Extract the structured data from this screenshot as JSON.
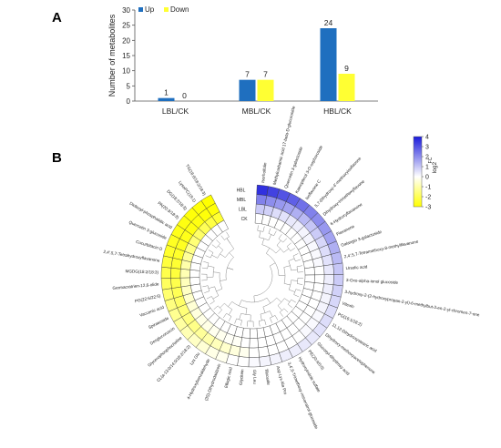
{
  "panels": {
    "a_letter": "A",
    "b_letter": "B"
  },
  "chart_data": [
    {
      "type": "bar",
      "panel": "A",
      "categories": [
        "LBL/CK",
        "MBL/CK",
        "HBL/CK"
      ],
      "series": [
        {
          "name": "Up",
          "values": [
            1,
            7,
            24
          ],
          "color": "#1f6fbf"
        },
        {
          "name": "Down",
          "values": [
            0,
            7,
            9
          ],
          "color": "#ffff33"
        }
      ],
      "ylabel": "Number of metabolites",
      "ylim": [
        0,
        30
      ],
      "yticks": [
        "0",
        "5",
        "10",
        "15",
        "20",
        "25",
        "30"
      ],
      "legend_placement": "top-left",
      "grid": false
    },
    {
      "type": "heatmap",
      "panel": "B",
      "layout": "circular",
      "rows": [
        "HBL",
        "MBL",
        "LBL",
        "CK"
      ],
      "colorbar": {
        "title": "log2",
        "subtitle": "FC",
        "min": -3,
        "max": 4,
        "ticks": [
          "4",
          "3",
          "2",
          "1",
          "0",
          "-1",
          "-2",
          "-3"
        ],
        "colors": [
          "#ffff00",
          "#ffffff",
          "#1a1adb"
        ]
      },
      "metabolites": [
        {
          "name": "Isorhoifolin",
          "v": [
            3.6,
            2.2,
            0.9,
            0
          ]
        },
        {
          "name": "Methylcarbamic acid 17-beta-D-glucuronide",
          "v": [
            3.3,
            2.0,
            0.8,
            0
          ]
        },
        {
          "name": "Quercetin 3-galactoside",
          "v": [
            3.0,
            1.8,
            0.6,
            0
          ]
        },
        {
          "name": "Kaempferol 3-O-sophoroside",
          "v": [
            2.8,
            1.6,
            0.5,
            0
          ]
        },
        {
          "name": "Isoflavone C",
          "v": [
            2.5,
            1.4,
            0.4,
            0
          ]
        },
        {
          "name": "5,7-Dihydroxy-4'-methoxyisoflavone",
          "v": [
            2.2,
            1.2,
            0.3,
            0
          ]
        },
        {
          "name": "Dihydroxy-trimethoxyflavone",
          "v": [
            2.0,
            1.0,
            0.2,
            0
          ]
        },
        {
          "name": "6-Hydroxyflavanone",
          "v": [
            1.8,
            0.9,
            0.2,
            0
          ]
        },
        {
          "name": "Flavanone",
          "v": [
            1.6,
            0.7,
            0.1,
            0
          ]
        },
        {
          "name": "Galangin 3-galactoside",
          "v": [
            1.4,
            0.6,
            0.1,
            0
          ]
        },
        {
          "name": "2,4',5,7-Tetramethoxy-8-methylflavanone",
          "v": [
            1.2,
            0.5,
            0.1,
            0
          ]
        },
        {
          "name": "Ursolic acid",
          "v": [
            1.0,
            0.4,
            0.0,
            0
          ]
        },
        {
          "name": "3-Oxo-alpha-ionol glucoside",
          "v": [
            0.9,
            0.3,
            0.0,
            0
          ]
        },
        {
          "name": "3-hydroxy-2-(2-hydroxypropan-2-yl)-6-methylbut-3-en-2-yl-chromen-7-one",
          "v": [
            0.8,
            0.3,
            0.0,
            0
          ]
        },
        {
          "name": "Vitexin",
          "v": [
            0.7,
            0.2,
            0.0,
            0
          ]
        },
        {
          "name": "PG(16:1/18:2)",
          "v": [
            0.6,
            0.2,
            0.0,
            0
          ]
        },
        {
          "name": "11,12-Dihydroxystearic acid",
          "v": [
            0.6,
            0.1,
            0.0,
            0
          ]
        },
        {
          "name": "Dihydroxy-methoxyacetophenone",
          "v": [
            0.5,
            0.1,
            0.0,
            0
          ]
        },
        {
          "name": "Glucosyl-dihydroxy acid",
          "v": [
            0.4,
            0.1,
            0.0,
            0
          ]
        },
        {
          "name": "PE(20:4/0:0)",
          "v": [
            0.4,
            0.0,
            0.0,
            0
          ]
        },
        {
          "name": "Hydroxyindole sulfate",
          "v": [
            0.3,
            0.0,
            0.0,
            0
          ]
        },
        {
          "name": "3,4',5-Trimethoxy-resveratrol glucoside",
          "v": [
            0.3,
            0.0,
            0.0,
            0
          ]
        },
        {
          "name": "Asp Lys Ala Pro",
          "v": [
            0.2,
            0.0,
            0.0,
            0
          ]
        },
        {
          "name": "Tiliroside",
          "v": [
            0.2,
            0.0,
            0.0,
            0
          ]
        },
        {
          "name": "Gly Leu",
          "v": [
            0.1,
            0.0,
            0.0,
            0
          ]
        },
        {
          "name": "Glycitein",
          "v": [
            0.0,
            -0.2,
            0.0,
            0
          ]
        },
        {
          "name": "Ellagic acid",
          "v": [
            0.0,
            -0.4,
            -0.1,
            0
          ]
        },
        {
          "name": "(3S)-Dihydrodaidzein",
          "v": [
            -0.2,
            -0.6,
            -0.1,
            0
          ]
        },
        {
          "name": "4-Hydroxybenzaldehyde",
          "v": [
            -0.3,
            -0.8,
            -0.2,
            0
          ]
        },
        {
          "name": "Lys Glu",
          "v": [
            -0.5,
            -1.0,
            -0.2,
            0
          ]
        },
        {
          "name": "CL(a-13:0/14:0/18:2/18:2)",
          "v": [
            -0.7,
            -1.2,
            -0.3,
            0
          ]
        },
        {
          "name": "Glycerophosphocholine",
          "v": [
            -0.9,
            -1.4,
            -0.3,
            0
          ]
        },
        {
          "name": "Desglucoruscin",
          "v": [
            -1.1,
            -1.5,
            -0.4,
            0
          ]
        },
        {
          "name": "Spiraeoside",
          "v": [
            -1.3,
            -1.6,
            -0.5,
            0
          ]
        },
        {
          "name": "Vaccenic acid",
          "v": [
            -1.5,
            -1.8,
            -0.6,
            0
          ]
        },
        {
          "name": "PG(22:6/22:6)",
          "v": [
            -1.7,
            -2.0,
            -0.7,
            0
          ]
        },
        {
          "name": "Germacratrien-12,6-olide",
          "v": [
            -1.9,
            -2.1,
            -0.8,
            0
          ]
        },
        {
          "name": "MGDG(18:2/18:3)",
          "v": [
            -2.1,
            -2.3,
            -0.9,
            0
          ]
        },
        {
          "name": "2,4',5,7-Tetrahydroxyflavanone",
          "v": [
            -2.3,
            -2.4,
            -1.0,
            0
          ]
        },
        {
          "name": "Cucurbitacin D",
          "v": [
            -2.5,
            -2.5,
            -1.2,
            0
          ]
        },
        {
          "name": "Quercetin 3-glucoside",
          "v": [
            -2.6,
            -2.6,
            -1.4,
            0
          ]
        },
        {
          "name": "Dioleoyl-phosphatidic acid",
          "v": [
            -2.7,
            -2.7,
            -1.6,
            0
          ]
        },
        {
          "name": "PA(20:3/18:3)",
          "v": [
            -2.8,
            -2.8,
            -1.8,
            0
          ]
        },
        {
          "name": "DG(18:2/18:3)",
          "v": [
            -2.9,
            -2.8,
            -2.0,
            0
          ]
        },
        {
          "name": "LysoPC(18:1)",
          "v": [
            -2.9,
            -2.9,
            -2.2,
            0
          ]
        },
        {
          "name": "TG(16:0/18:2/18:3)",
          "v": [
            -3.0,
            -2.9,
            -2.4,
            0
          ]
        }
      ]
    }
  ]
}
